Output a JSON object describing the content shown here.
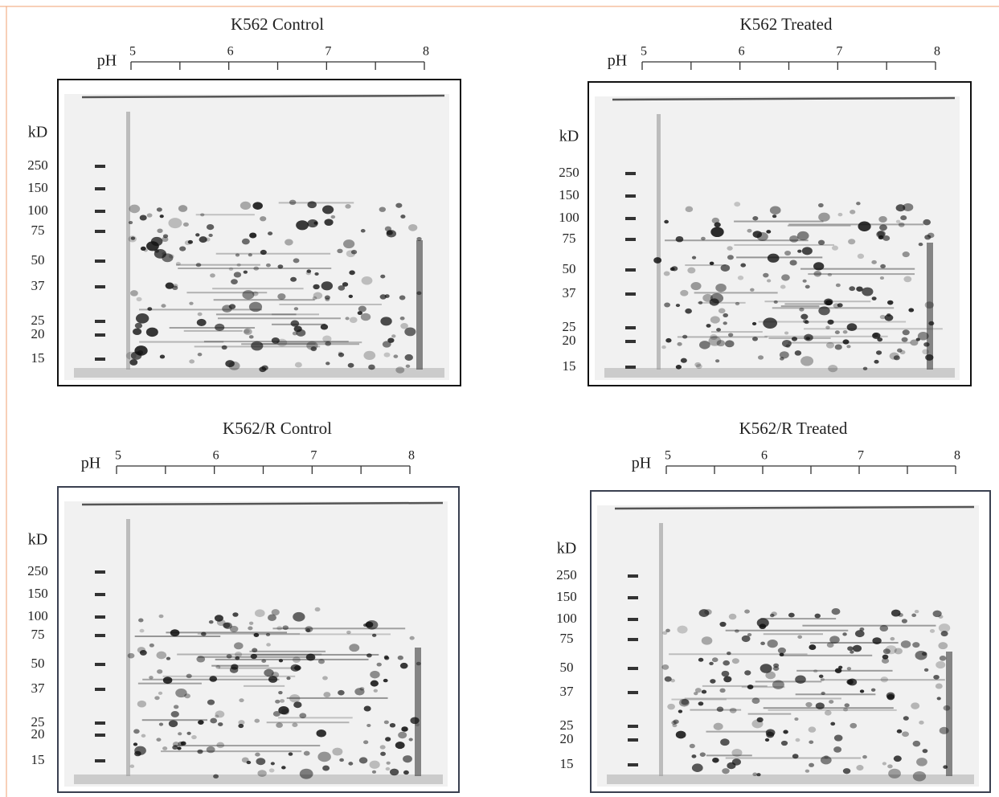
{
  "panels": [
    {
      "title": "K562 Control",
      "ph_label": "pH",
      "ph_ticks": [
        5,
        6,
        7,
        8
      ],
      "kd_label": "kD",
      "kd_ticks": [
        250,
        150,
        100,
        75,
        50,
        37,
        25,
        20,
        15
      ]
    },
    {
      "title": "K562 Treated",
      "ph_label": "pH",
      "ph_ticks": [
        5,
        6,
        7,
        8
      ],
      "kd_label": "kD",
      "kd_ticks": [
        250,
        150,
        100,
        75,
        50,
        37,
        25,
        20,
        15
      ]
    },
    {
      "title": "K562/R Control",
      "ph_label": "pH",
      "ph_ticks": [
        5,
        6,
        7,
        8
      ],
      "kd_label": "kD",
      "kd_ticks": [
        250,
        150,
        100,
        75,
        50,
        37,
        25,
        20,
        15
      ]
    },
    {
      "title": "K562/R Treated",
      "ph_label": "pH",
      "ph_ticks": [
        5,
        6,
        7,
        8
      ],
      "kd_label": "kD",
      "kd_ticks": [
        250,
        150,
        100,
        75,
        50,
        37,
        25,
        20,
        15
      ]
    }
  ]
}
